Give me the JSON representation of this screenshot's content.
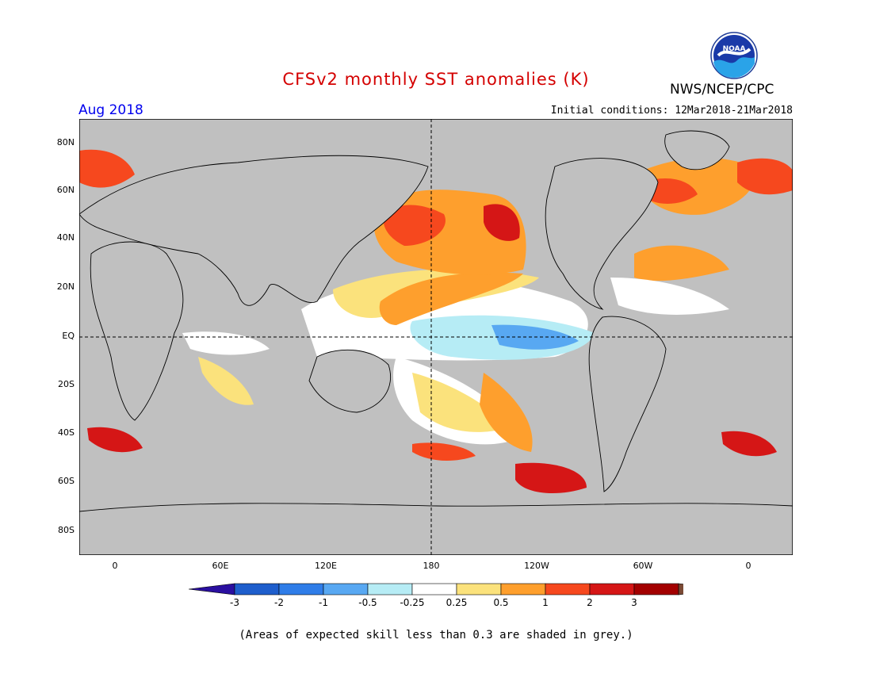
{
  "header": {
    "title": "CFSv2 monthly SST anomalies (K)",
    "agency": "NWS/NCEP/CPC",
    "logo_text": "NOAA",
    "month": "Aug 2018",
    "initial_conditions": "Initial conditions: 12Mar2018-21Mar2018"
  },
  "map": {
    "lat_labels": [
      "80N",
      "60N",
      "40N",
      "20N",
      "EQ",
      "20S",
      "40S",
      "60S",
      "80S"
    ],
    "lon_labels": [
      "0",
      "60E",
      "120E",
      "180",
      "120W",
      "60W",
      "0"
    ],
    "colors": {
      "land_and_low_skill": "#c0c0c0",
      "outline": "#000000"
    }
  },
  "colorbar": {
    "labels": [
      "-3",
      "-2",
      "-1",
      "-0.5",
      "-0.25",
      "0.25",
      "0.5",
      "1",
      "2",
      "3"
    ],
    "colors": [
      "#2a0fa0",
      "#1e5ecc",
      "#2f7de8",
      "#58a8f2",
      "#b6ecf5",
      "#ffffff",
      "#fbe27c",
      "#fe9f2d",
      "#f6481e",
      "#d51616",
      "#a30000",
      "#7a4a35"
    ]
  },
  "footnote": "(Areas of expected skill less than 0.3 are shaded in grey.)"
}
